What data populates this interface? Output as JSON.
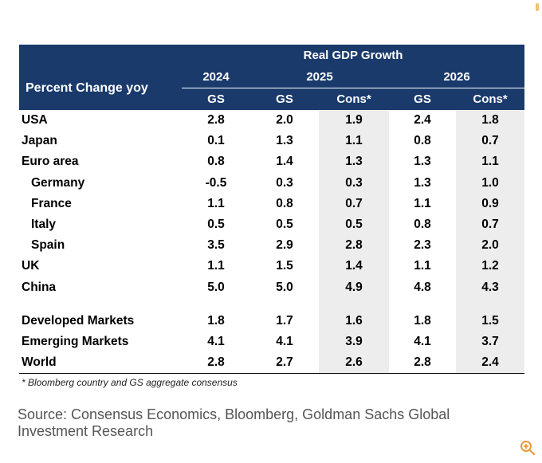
{
  "chart_data": {
    "type": "table",
    "title": "Real GDP Growth",
    "row_header": "Percent Change yoy",
    "years": [
      "2024",
      "2025",
      "2026"
    ],
    "columns": [
      "GS",
      "GS",
      "Cons*",
      "GS",
      "Cons*"
    ],
    "rows": [
      {
        "name": "USA",
        "values": [
          "2.8",
          "2.0",
          "1.9",
          "2.4",
          "1.8"
        ]
      },
      {
        "name": "Japan",
        "values": [
          "0.1",
          "1.3",
          "1.1",
          "0.8",
          "0.7"
        ]
      },
      {
        "name": "Euro area",
        "values": [
          "0.8",
          "1.4",
          "1.3",
          "1.3",
          "1.1"
        ]
      },
      {
        "name": "Germany",
        "values": [
          "-0.5",
          "0.3",
          "0.3",
          "1.3",
          "1.0"
        ]
      },
      {
        "name": "France",
        "values": [
          "1.1",
          "0.8",
          "0.7",
          "1.1",
          "0.9"
        ]
      },
      {
        "name": "Italy",
        "values": [
          "0.5",
          "0.5",
          "0.5",
          "0.8",
          "0.7"
        ]
      },
      {
        "name": "Spain",
        "values": [
          "3.5",
          "2.9",
          "2.8",
          "2.3",
          "2.0"
        ]
      },
      {
        "name": "UK",
        "values": [
          "1.1",
          "1.5",
          "1.4",
          "1.1",
          "1.2"
        ]
      },
      {
        "name": "China",
        "values": [
          "5.0",
          "5.0",
          "4.9",
          "4.8",
          "4.3"
        ]
      },
      {
        "name": "Developed Markets",
        "values": [
          "1.8",
          "1.7",
          "1.6",
          "1.8",
          "1.5"
        ]
      },
      {
        "name": "Emerging Markets",
        "values": [
          "4.1",
          "4.1",
          "3.9",
          "4.1",
          "3.7"
        ]
      },
      {
        "name": "World",
        "values": [
          "2.8",
          "2.7",
          "2.6",
          "2.8",
          "2.4"
        ]
      }
    ],
    "footnote": "* Bloomberg country and GS aggregate consensus"
  },
  "source": "Source: Consensus Economics, Bloomberg, Goldman Sachs Global Investment Research",
  "colors": {
    "header_bg": "#1a3a6b",
    "consensus_bg": "#ededed"
  },
  "icons": {
    "zoom": "zoom-in-icon"
  }
}
